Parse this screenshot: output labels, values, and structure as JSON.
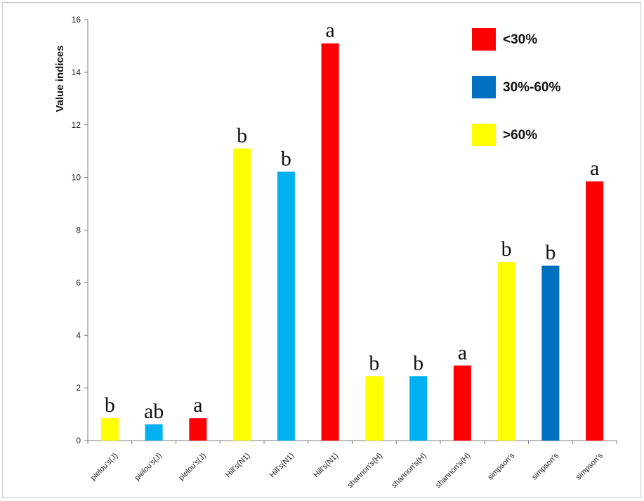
{
  "chart_data": {
    "type": "bar",
    "title": "",
    "xlabel": "",
    "ylabel": "Value indices",
    "ylim": [
      0,
      16
    ],
    "yticks": [
      0,
      2,
      4,
      6,
      8,
      10,
      12,
      14,
      16
    ],
    "grid": false,
    "legend_position": "top-right",
    "categories": [
      "pielou's(J)",
      "pielou's(J)",
      "pielou's(J)",
      "Hill's(N1)",
      "Hill's(N1)",
      "Hill's(N1)",
      "shannon's(H)",
      "shannon's(H)",
      "shannon's(H)",
      "simpson's",
      "simpson's",
      "simpson's"
    ],
    "values": [
      0.85,
      0.62,
      0.85,
      11.1,
      10.22,
      15.1,
      2.45,
      2.45,
      2.85,
      6.78,
      6.65,
      9.85
    ],
    "bar_colors": [
      "#ffff00",
      "#00b0f0",
      "#ff0000",
      "#ffff00",
      "#00b0f0",
      "#ff0000",
      "#ffff00",
      "#00b0f0",
      "#ff0000",
      "#ffff00",
      "#0070c0",
      "#ff0000"
    ],
    "annotations": [
      "b",
      "ab",
      "a",
      "b",
      "b",
      "a",
      "b",
      "b",
      "a",
      "b",
      "b",
      "a"
    ],
    "legend": [
      {
        "label": "<30%",
        "color": "#ff0000"
      },
      {
        "label": "30%-60%",
        "color": "#0070c0"
      },
      {
        "label": ">60%",
        "color": "#ffff00"
      }
    ]
  }
}
